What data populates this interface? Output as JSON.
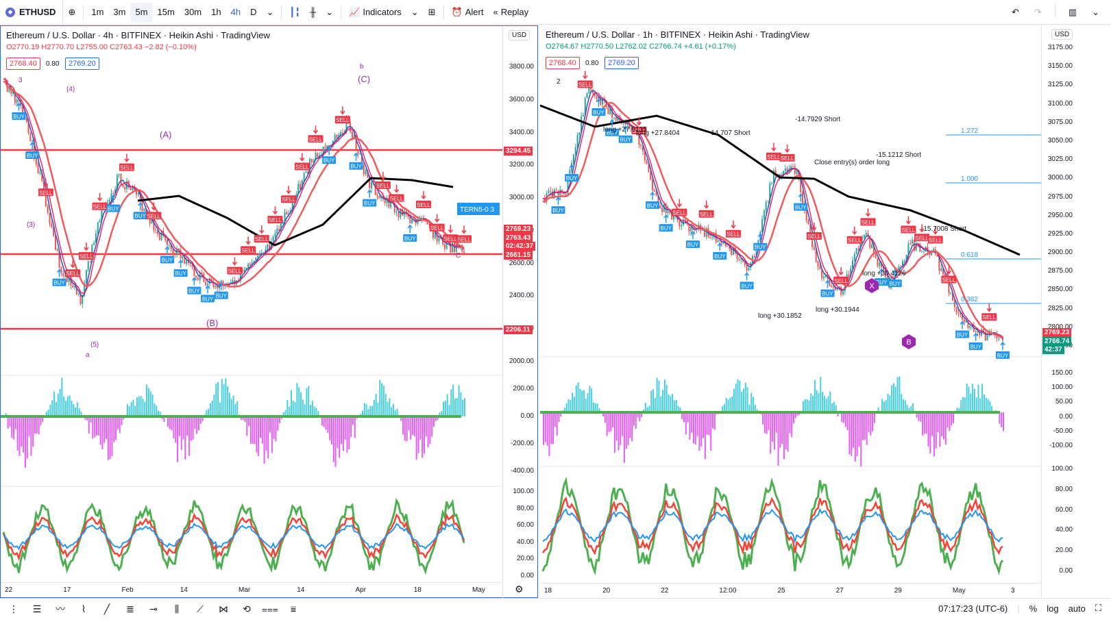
{
  "toolbar": {
    "symbol": "ETHUSD",
    "intervals": [
      "1m",
      "3m",
      "5m",
      "15m",
      "30m",
      "1h",
      "4h",
      "D"
    ],
    "active_interval": "4h",
    "selected_interval": "5m",
    "indicators_label": "Indicators",
    "alert_label": "Alert",
    "replay_label": "Replay"
  },
  "left": {
    "title": "Ethereum / U.S. Dollar · 4h · BITFINEX · Heikin Ashi · TradingView",
    "ohlc": {
      "o": "O2770.19",
      "h": "H2770.70",
      "l": "L2755.00",
      "c": "C2763.43",
      "chg": "−2.82 (−0.10%)"
    },
    "bid": "2768.40",
    "spread": "0.80",
    "ask": "2769.20",
    "currency": "USD",
    "price_labels": [
      "3800.00",
      "3600.00",
      "3400.00",
      "3200.00",
      "3000.00",
      "2800.00",
      "2600.00",
      "2400.00",
      "2200.00",
      "2000.00"
    ],
    "osc1_labels": [
      "200.00",
      "0.00",
      "-200.00",
      "-400.00"
    ],
    "osc2_labels": [
      "100.00",
      "80.00",
      "60.00",
      "40.00",
      "20.00",
      "0.00"
    ],
    "tags": [
      {
        "text": "3294.45",
        "color": "#f23645"
      },
      {
        "text": "2769.23",
        "color": "#f23645"
      },
      {
        "text": "2763.43",
        "color": "#f23645"
      },
      {
        "text": "02:42:37",
        "color": "#f23645"
      },
      {
        "text": "2661.15",
        "color": "#f23645"
      },
      {
        "text": "2206.11",
        "color": "#f23645"
      }
    ],
    "time_labels": [
      "22",
      "17",
      "Feb",
      "14",
      "Mar",
      "14",
      "Apr",
      "18",
      "May"
    ],
    "annotations": [
      "(A)",
      "(B)",
      "(C)",
      "b",
      "a",
      "(5)",
      "(4)",
      "(3)",
      "3",
      "C",
      "TERN5-0 3"
    ]
  },
  "right": {
    "title": "Ethereum / U.S. Dollar · 1h · BITFINEX · Heikin Ashi · TradingView",
    "ohlc": {
      "o": "O2764.67",
      "h": "H2770.50",
      "l": "L2762.02",
      "c": "C2766.74",
      "chg": "+4.61 (+0.17%)"
    },
    "bid": "2768.40",
    "spread": "0.80",
    "ask": "2769.20",
    "currency": "USD",
    "price_labels": [
      "3175.00",
      "3150.00",
      "3125.00",
      "3100.00",
      "3075.00",
      "3050.00",
      "3025.00",
      "3000.00",
      "2975.00",
      "2950.00",
      "2925.00",
      "2900.00",
      "2875.00",
      "2850.00",
      "2825.00",
      "2800.00",
      "2775.00"
    ],
    "osc1_labels": [
      "150.00",
      "100.00",
      "50.00",
      "0.00",
      "-50.00",
      "-100.00"
    ],
    "osc2_labels": [
      "100.00",
      "80.00",
      "60.00",
      "40.00",
      "20.00",
      "0.00"
    ],
    "tags": [
      {
        "text": "2769.23",
        "color": "#f23645"
      },
      {
        "text": "2766.74",
        "color": "#089981"
      },
      {
        "text": "42:37",
        "color": "#089981"
      }
    ],
    "fib_labels": [
      "1.272",
      "1.000",
      "0.618",
      "0.382"
    ],
    "time_labels": [
      "18",
      "20",
      "22",
      "12:00",
      "25",
      "27",
      "29",
      "May",
      "3"
    ],
    "trade_labels": [
      "-14.7929 Short",
      "-14.707 Short",
      "-15.1212 Short",
      "-15.7008 Short",
      "long +27.9135",
      "long +27.8404",
      "long +30.1852",
      "long +30.1944",
      "long +30.4126",
      "Close entry(s) order long",
      "2",
      "B",
      "X"
    ]
  },
  "bottom": {
    "time": "07:17:23 (UTC-6)",
    "percent_label": "%",
    "log_label": "log",
    "auto_label": "auto"
  },
  "colors": {
    "accent": "#2962ff",
    "sell": "#f23645",
    "buy": "#2196f3",
    "ma_black": "#000000",
    "ma_red": "#f05a5a",
    "hist_pos": "#26c6da",
    "hist_neg": "#e040fb",
    "green": "#4caf50",
    "purple": "#9c27b0"
  }
}
